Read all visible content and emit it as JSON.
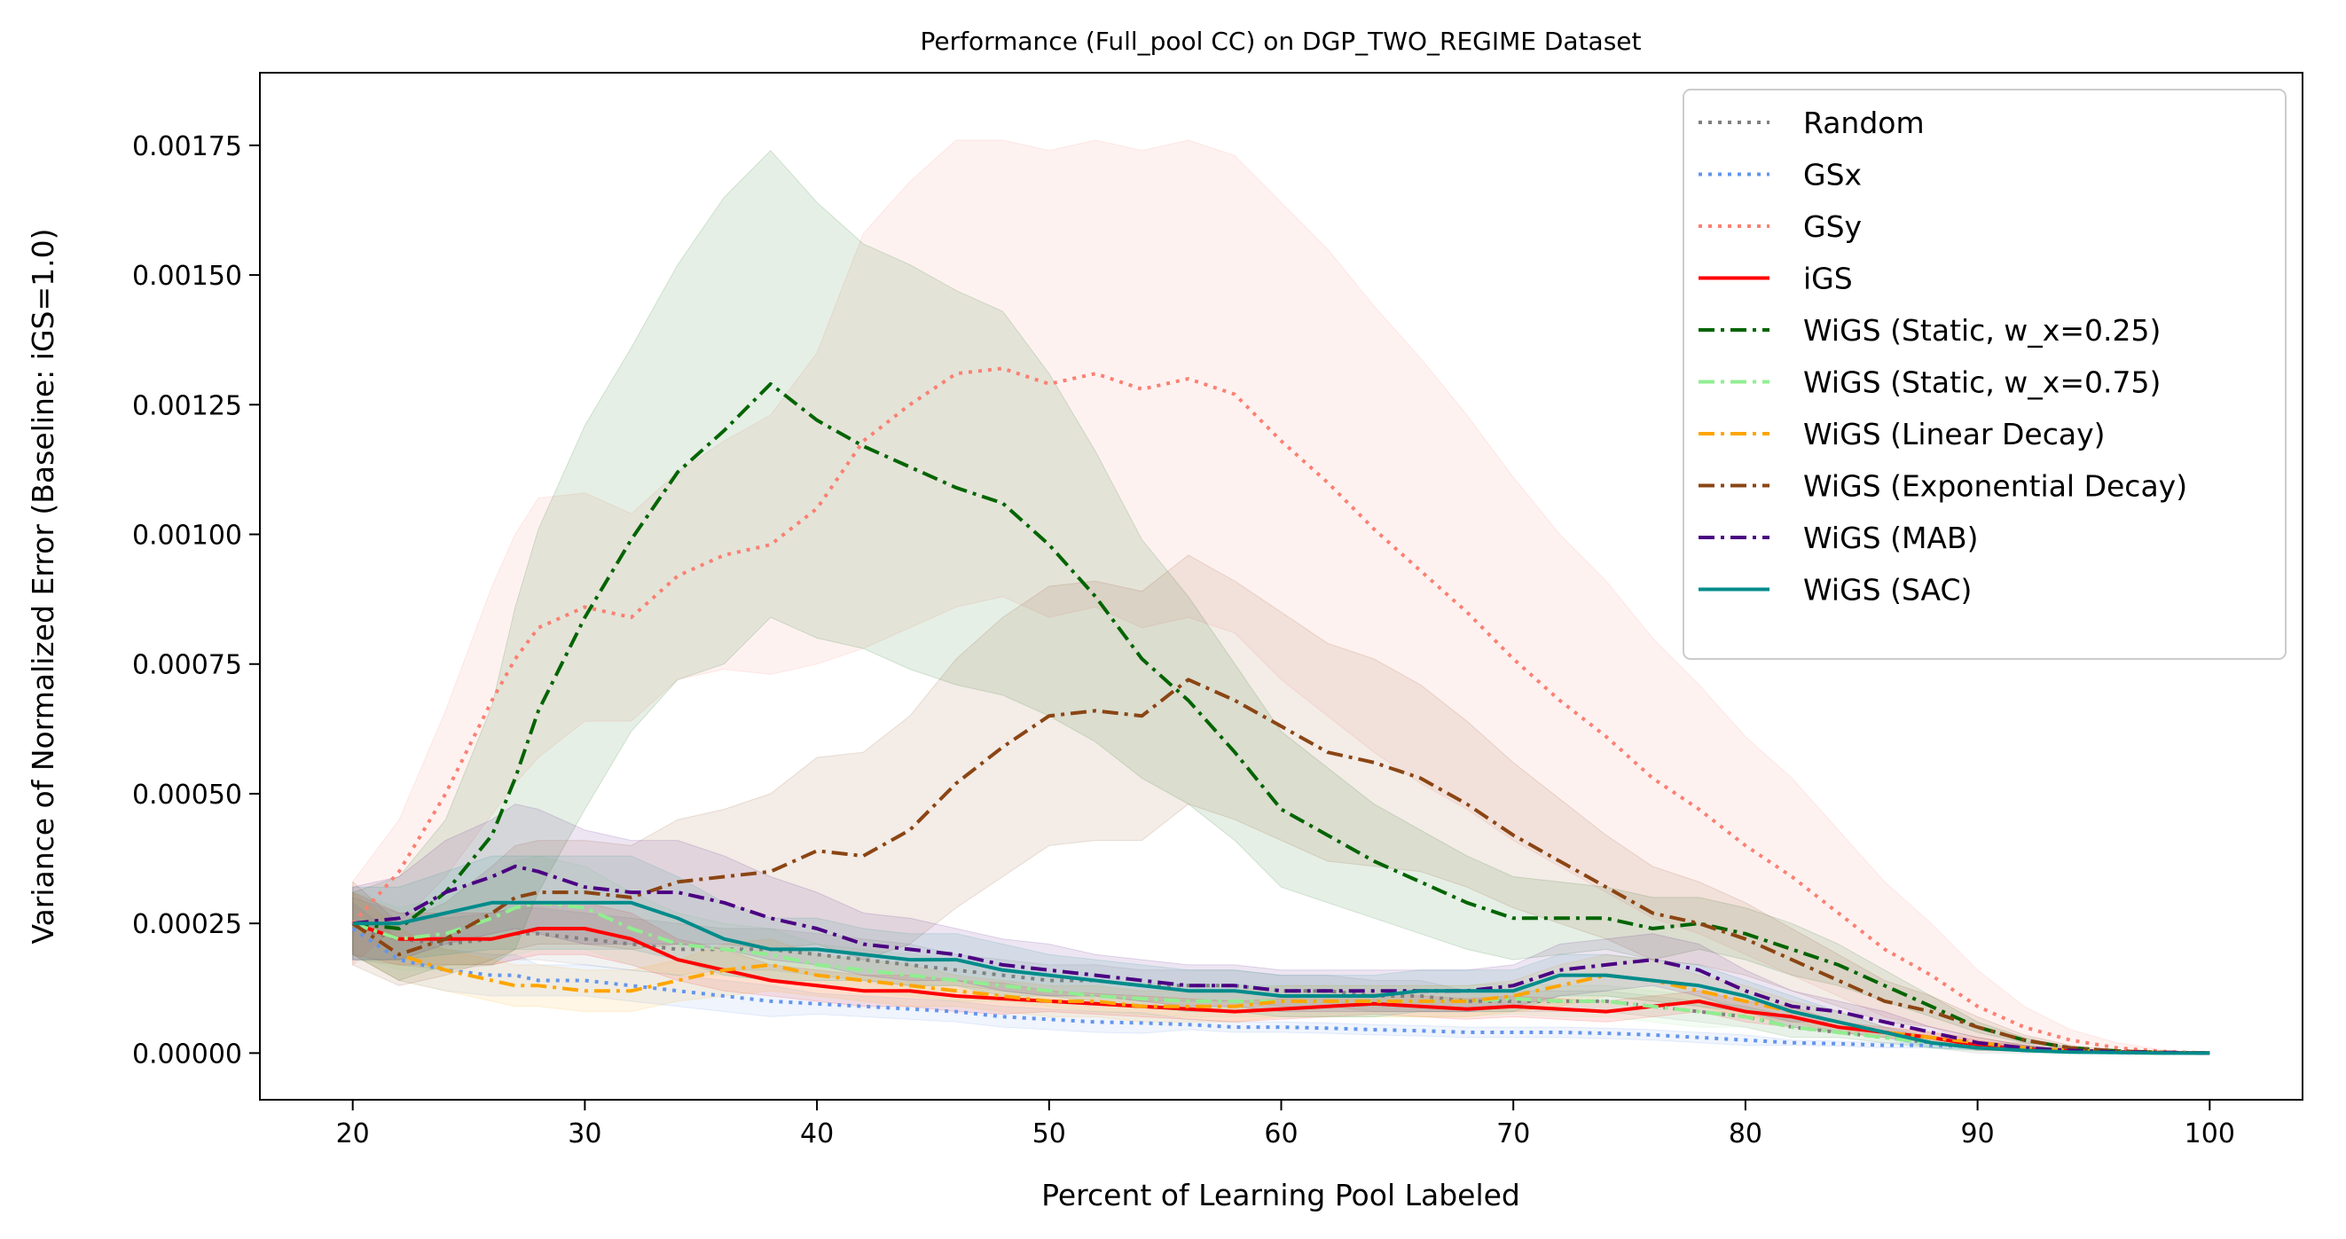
{
  "chart_data": {
    "type": "line",
    "title": "Performance (Full_pool CC) on DGP_TWO_REGIME Dataset",
    "xlabel": "Percent of Learning Pool Labeled",
    "ylabel": "Variance of Normalized Error (Baseline: iGS=1.0)",
    "xlim": [
      16,
      104
    ],
    "ylim": [
      -9e-05,
      0.00189
    ],
    "xticks": [
      20,
      30,
      40,
      50,
      60,
      70,
      80,
      90,
      100
    ],
    "xtick_labels": [
      "20",
      "30",
      "40",
      "50",
      "60",
      "70",
      "80",
      "90",
      "100"
    ],
    "yticks": [
      0,
      0.00025,
      0.0005,
      0.00075,
      0.001,
      0.00125,
      0.0015,
      0.00175
    ],
    "ytick_labels": [
      "0.00000",
      "0.00025",
      "0.00050",
      "0.00075",
      "0.00100",
      "0.00125",
      "0.00150",
      "0.00175"
    ],
    "grid": false,
    "legend_position": "top-right",
    "x": [
      20,
      22,
      24,
      26,
      27,
      28,
      30,
      32,
      34,
      36,
      38,
      40,
      42,
      44,
      46,
      48,
      50,
      52,
      54,
      56,
      58,
      60,
      62,
      64,
      66,
      68,
      70,
      72,
      74,
      76,
      78,
      80,
      82,
      84,
      86,
      88,
      90,
      92,
      94,
      96,
      98,
      100
    ],
    "series": [
      {
        "name": "Random",
        "color": "#808080",
        "dash": "dotted",
        "values": [
          0.00024,
          0.00022,
          0.00021,
          0.00022,
          0.00023,
          0.00023,
          0.00022,
          0.00021,
          0.0002,
          0.0002,
          0.0002,
          0.00019,
          0.00018,
          0.00017,
          0.00016,
          0.00015,
          0.00014,
          0.00014,
          0.00013,
          0.00013,
          0.00013,
          0.00012,
          0.00012,
          0.00011,
          0.00011,
          0.0001,
          0.0001,
          0.0001,
          0.0001,
          9e-05,
          8e-05,
          7e-05,
          5e-05,
          4e-05,
          3e-05,
          2e-05,
          1e-05,
          1e-05,
          5e-06,
          2e-06,
          1e-06,
          0
        ],
        "band": [
          6e-05,
          5e-05,
          5e-05,
          5e-05,
          5e-05,
          5e-05,
          5e-05,
          5e-05,
          5e-05,
          4e-05,
          4e-05,
          4e-05,
          4e-05,
          4e-05,
          3e-05,
          3e-05,
          3e-05,
          3e-05,
          3e-05,
          3e-05,
          3e-05,
          3e-05,
          3e-05,
          3e-05,
          3e-05,
          2e-05,
          2e-05,
          2e-05,
          2e-05,
          2e-05,
          2e-05,
          2e-05,
          2e-05,
          1e-05,
          1e-05,
          1e-05,
          1e-05,
          1e-05,
          5e-06,
          0,
          0,
          0
        ]
      },
      {
        "name": "GSx",
        "color": "#6495ED",
        "dash": "dotted",
        "values": [
          0.00024,
          0.00018,
          0.00016,
          0.00015,
          0.00015,
          0.00014,
          0.00014,
          0.00013,
          0.00012,
          0.00011,
          0.0001,
          9.5e-05,
          9e-05,
          8.5e-05,
          8e-05,
          7e-05,
          6.5e-05,
          6e-05,
          5.8e-05,
          5.5e-05,
          5e-05,
          5e-05,
          4.8e-05,
          4.5e-05,
          4.3e-05,
          4e-05,
          4e-05,
          4e-05,
          3.8e-05,
          3.5e-05,
          3e-05,
          2.5e-05,
          2e-05,
          1.8e-05,
          1.5e-05,
          1.5e-05,
          1.2e-05,
          1e-05,
          5e-06,
          2e-06,
          1e-06,
          0
        ],
        "band": [
          5e-05,
          4e-05,
          4e-05,
          4e-05,
          4e-05,
          3e-05,
          3e-05,
          3e-05,
          3e-05,
          3e-05,
          3e-05,
          2e-05,
          2e-05,
          2e-05,
          2e-05,
          2e-05,
          2e-05,
          2e-05,
          2e-05,
          1e-05,
          1e-05,
          1e-05,
          1e-05,
          1e-05,
          1e-05,
          1e-05,
          1e-05,
          1e-05,
          1e-05,
          1e-05,
          1e-05,
          1e-05,
          5e-06,
          5e-06,
          5e-06,
          5e-06,
          5e-06,
          5e-06,
          0,
          0,
          0,
          0
        ]
      },
      {
        "name": "GSy",
        "color": "#FA8072",
        "dash": "dotted",
        "values": [
          0.00025,
          0.00035,
          0.0005,
          0.00068,
          0.00076,
          0.00082,
          0.00086,
          0.00084,
          0.00092,
          0.00096,
          0.00098,
          0.00105,
          0.00118,
          0.00125,
          0.00131,
          0.00132,
          0.00129,
          0.00131,
          0.00128,
          0.0013,
          0.00127,
          0.00118,
          0.0011,
          0.00101,
          0.00093,
          0.00085,
          0.00076,
          0.00068,
          0.00061,
          0.00053,
          0.00047,
          0.0004,
          0.00034,
          0.00027,
          0.0002,
          0.00015,
          9e-05,
          5e-05,
          2.5e-05,
          1e-05,
          3e-06,
          0
        ],
        "band": [
          8e-05,
          0.0001,
          0.00016,
          0.00022,
          0.00024,
          0.00025,
          0.00022,
          0.0002,
          0.0002,
          0.00022,
          0.00025,
          0.0003,
          0.0004,
          0.00043,
          0.00045,
          0.00044,
          0.00045,
          0.00045,
          0.00046,
          0.00046,
          0.00046,
          0.00046,
          0.00045,
          0.00043,
          0.00041,
          0.00038,
          0.00035,
          0.00032,
          0.0003,
          0.00027,
          0.00024,
          0.00021,
          0.00019,
          0.00016,
          0.00013,
          0.0001,
          7e-05,
          4e-05,
          2e-05,
          1e-05,
          3e-06,
          0
        ]
      },
      {
        "name": "iGS",
        "color": "#FF0000",
        "dash": "solid",
        "values": [
          0.00025,
          0.00022,
          0.00022,
          0.00022,
          0.00023,
          0.00024,
          0.00024,
          0.00022,
          0.00018,
          0.00016,
          0.00014,
          0.00013,
          0.00012,
          0.00012,
          0.00011,
          0.000105,
          0.0001,
          9.5e-05,
          9e-05,
          8.5e-05,
          8e-05,
          8.5e-05,
          9e-05,
          9.5e-05,
          9e-05,
          8.5e-05,
          9e-05,
          8.5e-05,
          8e-05,
          9e-05,
          0.0001,
          8e-05,
          7e-05,
          5e-05,
          4e-05,
          3e-05,
          1.5e-05,
          8e-06,
          4e-06,
          2e-06,
          1e-06,
          0
        ],
        "band": [
          6e-05,
          5e-05,
          5e-05,
          5e-05,
          5e-05,
          5e-05,
          5e-05,
          5e-05,
          4e-05,
          4e-05,
          3e-05,
          3e-05,
          3e-05,
          3e-05,
          3e-05,
          3e-05,
          2e-05,
          2e-05,
          2e-05,
          2e-05,
          2e-05,
          2e-05,
          2e-05,
          2e-05,
          2e-05,
          2e-05,
          2e-05,
          2e-05,
          2e-05,
          2e-05,
          2e-05,
          2e-05,
          2e-05,
          1e-05,
          1e-05,
          1e-05,
          1e-05,
          5e-06,
          0,
          0,
          0,
          0
        ]
      },
      {
        "name": "WiGS (Static, w_x=0.25)",
        "color": "#006400",
        "dash": "dashdot",
        "values": [
          0.00025,
          0.00024,
          0.00031,
          0.00042,
          0.00053,
          0.00066,
          0.00084,
          0.00099,
          0.00112,
          0.0012,
          0.00129,
          0.00122,
          0.00117,
          0.00113,
          0.00109,
          0.00106,
          0.00098,
          0.00088,
          0.00076,
          0.00068,
          0.00058,
          0.00047,
          0.00042,
          0.00037,
          0.00033,
          0.00029,
          0.00026,
          0.00026,
          0.00026,
          0.00024,
          0.00025,
          0.00023,
          0.0002,
          0.00017,
          0.00013,
          9e-05,
          5e-05,
          2.5e-05,
          1e-05,
          4e-06,
          1e-06,
          0
        ],
        "band": [
          6e-05,
          0.0001,
          0.00014,
          0.00025,
          0.00033,
          0.00035,
          0.00037,
          0.00037,
          0.0004,
          0.00045,
          0.00045,
          0.00042,
          0.00039,
          0.00039,
          0.00038,
          0.00037,
          0.00033,
          0.00028,
          0.00023,
          0.0002,
          0.00017,
          0.00015,
          0.00013,
          0.00011,
          0.0001,
          9e-05,
          8e-05,
          7e-05,
          6e-05,
          6e-05,
          5e-05,
          5e-05,
          5e-05,
          4e-05,
          3e-05,
          2e-05,
          1e-05,
          5e-06,
          0,
          0,
          0,
          0
        ]
      },
      {
        "name": "WiGS (Static, w_x=0.75)",
        "color": "#90EE90",
        "dash": "dashdot",
        "values": [
          0.00025,
          0.00022,
          0.00023,
          0.00026,
          0.00028,
          0.00029,
          0.00028,
          0.00024,
          0.00021,
          0.0002,
          0.00019,
          0.00017,
          0.00016,
          0.00015,
          0.00014,
          0.00013,
          0.00012,
          0.00011,
          0.000105,
          0.0001,
          0.0001,
          0.0001,
          0.0001,
          0.0001,
          0.0001,
          0.0001,
          0.000105,
          0.0001,
          0.0001,
          9e-05,
          8e-05,
          7e-05,
          5e-05,
          4e-05,
          3e-05,
          2e-05,
          1e-05,
          5e-06,
          2e-06,
          1e-06,
          0,
          0
        ],
        "band": [
          6e-05,
          6e-05,
          7e-05,
          8e-05,
          9e-05,
          9e-05,
          8e-05,
          7e-05,
          6e-05,
          5e-05,
          5e-05,
          4e-05,
          4e-05,
          4e-05,
          4e-05,
          3e-05,
          3e-05,
          3e-05,
          3e-05,
          3e-05,
          3e-05,
          3e-05,
          3e-05,
          3e-05,
          3e-05,
          3e-05,
          3e-05,
          3e-05,
          3e-05,
          3e-05,
          3e-05,
          2e-05,
          2e-05,
          1e-05,
          1e-05,
          1e-05,
          5e-06,
          0,
          0,
          0,
          0,
          0
        ]
      },
      {
        "name": "WiGS (Linear Decay)",
        "color": "#FFA500",
        "dash": "dashdot",
        "values": [
          0.00025,
          0.00019,
          0.00016,
          0.00014,
          0.00013,
          0.00013,
          0.00012,
          0.00012,
          0.00014,
          0.00016,
          0.00017,
          0.00015,
          0.00014,
          0.00013,
          0.00012,
          0.00011,
          0.0001,
          0.0001,
          9e-05,
          9e-05,
          9e-05,
          0.0001,
          0.0001,
          0.0001,
          0.0001,
          0.0001,
          0.00011,
          0.00013,
          0.00015,
          0.00014,
          0.00012,
          0.0001,
          8e-05,
          6e-05,
          4e-05,
          3e-05,
          2e-05,
          1e-05,
          5e-06,
          2e-06,
          1e-06,
          0
        ],
        "band": [
          6e-05,
          5e-05,
          4e-05,
          4e-05,
          4e-05,
          4e-05,
          4e-05,
          4e-05,
          4e-05,
          5e-05,
          5e-05,
          4e-05,
          4e-05,
          4e-05,
          3e-05,
          3e-05,
          3e-05,
          3e-05,
          3e-05,
          3e-05,
          3e-05,
          3e-05,
          3e-05,
          3e-05,
          3e-05,
          3e-05,
          3e-05,
          4e-05,
          4e-05,
          4e-05,
          3e-05,
          3e-05,
          2e-05,
          2e-05,
          1e-05,
          1e-05,
          1e-05,
          5e-06,
          0,
          0,
          0,
          0
        ]
      },
      {
        "name": "WiGS (Exponential Decay)",
        "color": "#8B4513",
        "dash": "dashdot",
        "values": [
          0.00025,
          0.00019,
          0.00022,
          0.00027,
          0.0003,
          0.00031,
          0.00031,
          0.0003,
          0.00033,
          0.00034,
          0.00035,
          0.00039,
          0.00038,
          0.00043,
          0.00052,
          0.00059,
          0.00065,
          0.00066,
          0.00065,
          0.00072,
          0.00068,
          0.00063,
          0.00058,
          0.00056,
          0.00053,
          0.00048,
          0.00042,
          0.00037,
          0.00032,
          0.00027,
          0.00025,
          0.00022,
          0.00018,
          0.00014,
          0.0001,
          8e-05,
          5e-05,
          2.5e-05,
          1e-05,
          4e-06,
          1e-06,
          0
        ],
        "band": [
          8e-05,
          6e-05,
          7e-05,
          9e-05,
          0.0001,
          0.0001,
          0.0001,
          0.0001,
          0.00012,
          0.00013,
          0.00015,
          0.00018,
          0.0002,
          0.00022,
          0.00024,
          0.00025,
          0.00025,
          0.00025,
          0.00024,
          0.00024,
          0.00023,
          0.00022,
          0.00021,
          0.0002,
          0.00018,
          0.00016,
          0.00014,
          0.00012,
          0.0001,
          9e-05,
          8e-05,
          7e-05,
          6e-05,
          5e-05,
          4e-05,
          3e-05,
          2e-05,
          1e-05,
          5e-06,
          0,
          0,
          0
        ]
      },
      {
        "name": "WiGS (MAB)",
        "color": "#4B0082",
        "dash": "dashdot",
        "values": [
          0.00025,
          0.00026,
          0.00031,
          0.00034,
          0.00036,
          0.00035,
          0.00032,
          0.00031,
          0.00031,
          0.00029,
          0.00026,
          0.00024,
          0.00021,
          0.0002,
          0.00019,
          0.00017,
          0.00016,
          0.00015,
          0.00014,
          0.00013,
          0.00013,
          0.00012,
          0.00012,
          0.00012,
          0.00012,
          0.00012,
          0.00013,
          0.00016,
          0.00017,
          0.00018,
          0.00016,
          0.00012,
          9e-05,
          8e-05,
          6e-05,
          4e-05,
          2e-05,
          1e-05,
          5e-06,
          2e-06,
          1e-06,
          0
        ],
        "band": [
          7e-05,
          8e-05,
          0.0001,
          0.00011,
          0.00012,
          0.00012,
          0.00011,
          0.0001,
          0.0001,
          9e-05,
          8e-05,
          7e-05,
          6e-05,
          6e-05,
          5e-05,
          5e-05,
          5e-05,
          4e-05,
          4e-05,
          4e-05,
          4e-05,
          4e-05,
          4e-05,
          4e-05,
          4e-05,
          4e-05,
          4e-05,
          5e-05,
          5e-05,
          5e-05,
          5e-05,
          4e-05,
          3e-05,
          2e-05,
          2e-05,
          1e-05,
          1e-05,
          5e-06,
          0,
          0,
          0,
          0
        ]
      },
      {
        "name": "WiGS (SAC)",
        "color": "#008B8B",
        "dash": "solid",
        "values": [
          0.00025,
          0.00025,
          0.00027,
          0.00029,
          0.00029,
          0.00029,
          0.00029,
          0.00029,
          0.00026,
          0.00022,
          0.0002,
          0.0002,
          0.00019,
          0.00018,
          0.00018,
          0.00016,
          0.00015,
          0.00014,
          0.00013,
          0.00012,
          0.00012,
          0.00011,
          0.00011,
          0.00011,
          0.00012,
          0.00012,
          0.00012,
          0.00015,
          0.00015,
          0.00014,
          0.00013,
          0.00011,
          8e-05,
          6e-05,
          4e-05,
          2e-05,
          1e-05,
          5e-06,
          2e-06,
          1e-06,
          0,
          0
        ],
        "band": [
          7e-05,
          7e-05,
          8e-05,
          9e-05,
          9e-05,
          9e-05,
          9e-05,
          9e-05,
          8e-05,
          7e-05,
          6e-05,
          6e-05,
          5e-05,
          5e-05,
          5e-05,
          5e-05,
          4e-05,
          4e-05,
          4e-05,
          4e-05,
          4e-05,
          4e-05,
          4e-05,
          4e-05,
          4e-05,
          4e-05,
          4e-05,
          4e-05,
          4e-05,
          4e-05,
          4e-05,
          3e-05,
          3e-05,
          2e-05,
          1e-05,
          1e-05,
          5e-06,
          0,
          0,
          0,
          0,
          0
        ]
      }
    ]
  }
}
